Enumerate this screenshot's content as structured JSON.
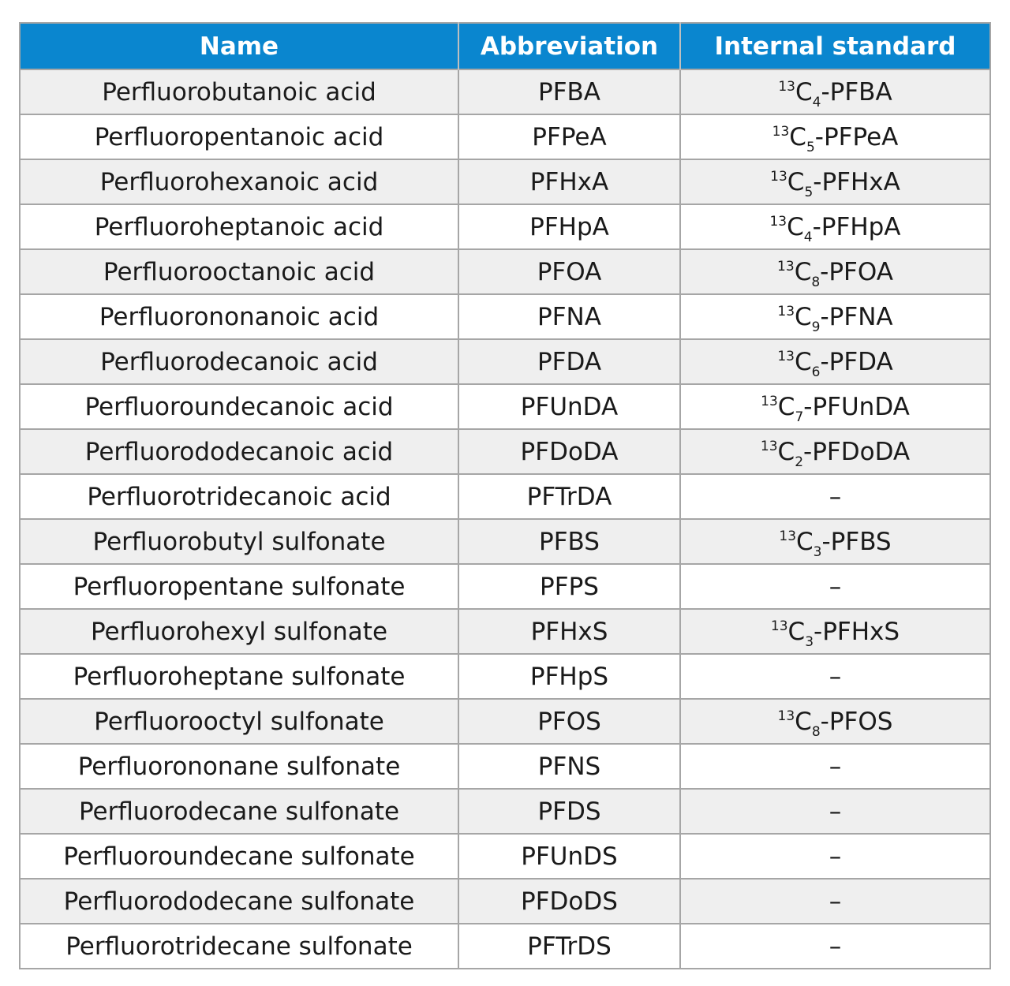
{
  "table": {
    "headers": [
      "Name",
      "Abbreviation",
      "Internal standard"
    ],
    "rows": [
      {
        "name": "Perfluorobutanoic acid",
        "abbr": "PFBA",
        "is": {
          "iso": "13",
          "el": "C",
          "n": "4",
          "rest": "-PFBA"
        }
      },
      {
        "name": "Perfluoropentanoic acid",
        "abbr": "PFPeA",
        "is": {
          "iso": "13",
          "el": "C",
          "n": "5",
          "rest": "-PFPeA"
        }
      },
      {
        "name": "Perfluorohexanoic acid",
        "abbr": "PFHxA",
        "is": {
          "iso": "13",
          "el": "C",
          "n": "5",
          "rest": "-PFHxA"
        }
      },
      {
        "name": "Perfluoroheptanoic acid",
        "abbr": "PFHpA",
        "is": {
          "iso": "13",
          "el": "C",
          "n": "4",
          "rest": "-PFHpA"
        }
      },
      {
        "name": "Perfluorooctanoic acid",
        "abbr": "PFOA",
        "is": {
          "iso": "13",
          "el": "C",
          "n": "8",
          "rest": "-PFOA"
        }
      },
      {
        "name": "Perfluorononanoic acid",
        "abbr": "PFNA",
        "is": {
          "iso": "13",
          "el": "C",
          "n": "9",
          "rest": "-PFNA"
        }
      },
      {
        "name": "Perfluorodecanoic acid",
        "abbr": "PFDA",
        "is": {
          "iso": "13",
          "el": "C",
          "n": "6",
          "rest": "-PFDA"
        }
      },
      {
        "name": "Perfluoroundecanoic acid",
        "abbr": "PFUnDA",
        "is": {
          "iso": "13",
          "el": "C",
          "n": "7",
          "rest": "-PFUnDA"
        }
      },
      {
        "name": "Perfluorododecanoic acid",
        "abbr": "PFDoDA",
        "is": {
          "iso": "13",
          "el": "C",
          "n": "2",
          "rest": "-PFDoDA"
        }
      },
      {
        "name": "Perfluorotridecanoic acid",
        "abbr": "PFTrDA",
        "is": {
          "dash": "–"
        }
      },
      {
        "name": "Perfluorobutyl sulfonate",
        "abbr": "PFBS",
        "is": {
          "iso": "13",
          "el": "C",
          "n": "3",
          "rest": "-PFBS"
        }
      },
      {
        "name": "Perfluoropentane sulfonate",
        "abbr": "PFPS",
        "is": {
          "dash": "–"
        }
      },
      {
        "name": "Perfluorohexyl sulfonate",
        "abbr": "PFHxS",
        "is": {
          "iso": "13",
          "el": "C",
          "n": "3",
          "rest": "-PFHxS"
        }
      },
      {
        "name": "Perfluoroheptane sulfonate",
        "abbr": "PFHpS",
        "is": {
          "dash": "–"
        }
      },
      {
        "name": "Perfluorooctyl sulfonate",
        "abbr": "PFOS",
        "is": {
          "iso": "13",
          "el": "C",
          "n": "8",
          "rest": "-PFOS"
        }
      },
      {
        "name": "Perfluorononane sulfonate",
        "abbr": "PFNS",
        "is": {
          "dash": "–"
        }
      },
      {
        "name": "Perfluorodecane sulfonate",
        "abbr": "PFDS",
        "is": {
          "dash": "–"
        }
      },
      {
        "name": "Perfluoroundecane sulfonate",
        "abbr": "PFUnDS",
        "is": {
          "dash": "–"
        }
      },
      {
        "name": "Perfluorododecane sulfonate",
        "abbr": "PFDoDS",
        "is": {
          "dash": "–"
        }
      },
      {
        "name": "Perfluorotridecane sulfonate",
        "abbr": "PFTrDS",
        "is": {
          "dash": "–"
        }
      }
    ]
  },
  "colors": {
    "header_bg": "#0a86cf",
    "header_text": "#ffffff",
    "row_alt_bg": "#efefef",
    "border": "#a6a6a6"
  }
}
